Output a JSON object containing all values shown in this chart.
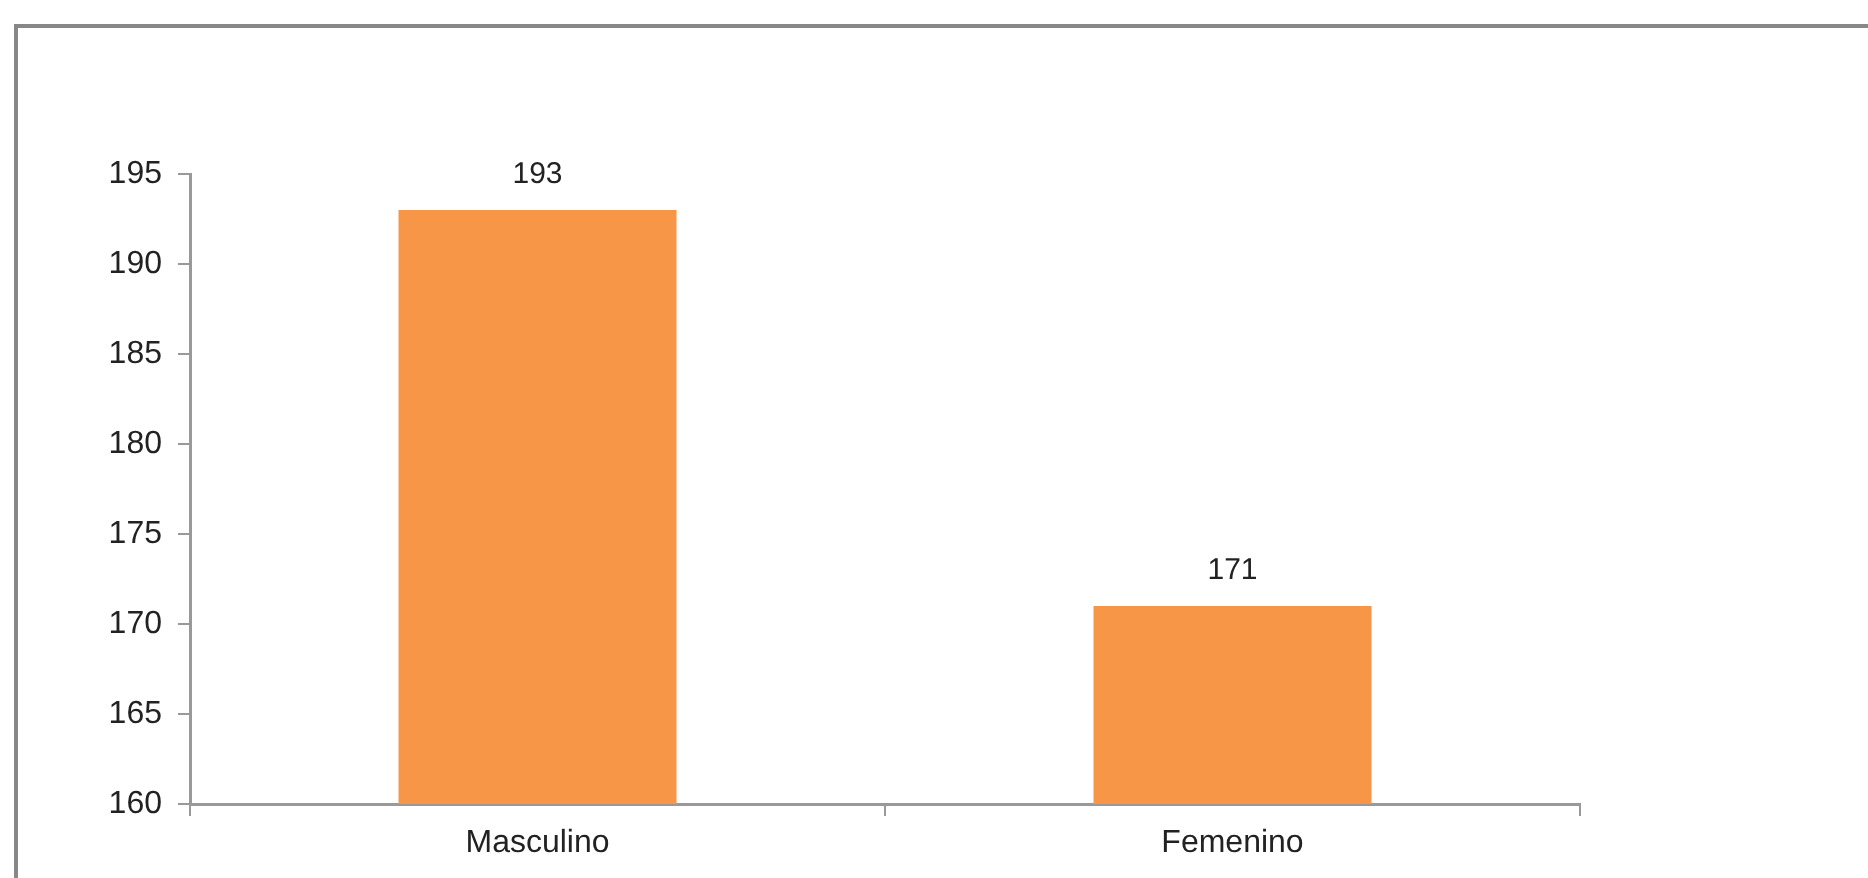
{
  "chart_data": {
    "type": "bar",
    "categories": [
      "Masculino",
      "Femenino"
    ],
    "values": [
      193,
      171
    ],
    "color": "#f79646",
    "ylim": [
      160,
      195
    ],
    "yticks": [
      160,
      165,
      170,
      175,
      180,
      185,
      190,
      195
    ],
    "data_labels": true,
    "grid": false
  }
}
